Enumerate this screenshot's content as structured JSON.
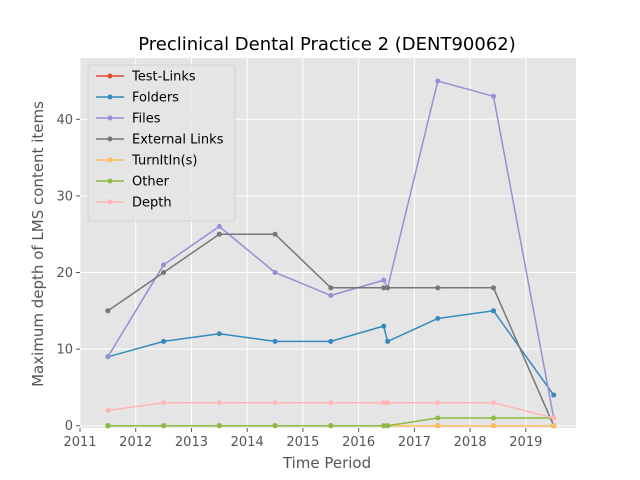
{
  "chart_data": {
    "type": "line",
    "title": "Preclinical Dental Practice 2 (DENT90062)",
    "xlabel": "Time Period",
    "ylabel": "Maximum depth of LMS content items",
    "xlim": [
      2011,
      2019.9
    ],
    "ylim": [
      -0.3,
      48
    ],
    "xticks": [
      2011,
      2012,
      2013,
      2014,
      2015,
      2016,
      2017,
      2018,
      2019
    ],
    "yticks": [
      0,
      10,
      20,
      30,
      40
    ],
    "grid": true,
    "legend_position": "upper-left",
    "x": [
      2011.5,
      2012.5,
      2013.5,
      2014.5,
      2015.5,
      2016.45,
      2016.52,
      2017.42,
      2018.42,
      2019.5
    ],
    "series": [
      {
        "name": "Test-Links",
        "color": "#E24A33",
        "values": [
          0,
          0,
          0,
          0,
          0,
          0,
          0,
          0,
          0,
          0
        ]
      },
      {
        "name": "Folders",
        "color": "#348ABD",
        "values": [
          9,
          11,
          12,
          11,
          11,
          13,
          11,
          14,
          15,
          4
        ]
      },
      {
        "name": "Files",
        "color": "#988ED5",
        "values": [
          9,
          21,
          26,
          20,
          17,
          19,
          18,
          45,
          43,
          1
        ]
      },
      {
        "name": "External Links",
        "color": "#777777",
        "values": [
          15,
          20,
          25,
          25,
          18,
          18,
          18,
          18,
          18,
          0
        ]
      },
      {
        "name": "TurnItIn(s)",
        "color": "#FBC15E",
        "values": [
          0,
          0,
          0,
          0,
          0,
          0,
          0,
          0,
          0,
          0
        ]
      },
      {
        "name": "Other",
        "color": "#8EBA42",
        "values": [
          0,
          0,
          0,
          0,
          0,
          0,
          0,
          1,
          1,
          1
        ]
      },
      {
        "name": "Depth",
        "color": "#FFB5B8",
        "values": [
          2,
          3,
          3,
          3,
          3,
          3,
          3,
          3,
          3,
          1
        ]
      }
    ]
  }
}
